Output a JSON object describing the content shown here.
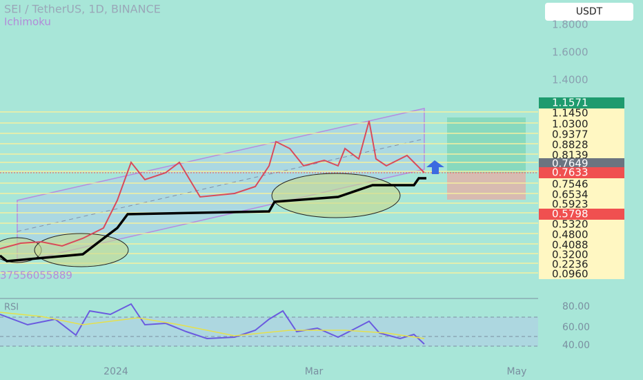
{
  "header": {
    "title": "SEI / TetherUS, 1D, BINANCE",
    "indicator": "Ichimoku",
    "currency": "USDT"
  },
  "price_scale": [
    "1.8000",
    "1.6000",
    "1.4000",
    "1.1571",
    "1.1450",
    "1.0300",
    "0.9377",
    "0.8828",
    "0.8139",
    "0.7649",
    "0.7633",
    "0.7546",
    "0.6534",
    "0.5923",
    "0.5798",
    "0.5320",
    "0.4800",
    "0.4088",
    "0.3200",
    "0.2236",
    "0.0960"
  ],
  "volume_text": "37556055889",
  "rsi": {
    "name": "RSI",
    "labels": [
      "80.00",
      "60.00",
      "40.00"
    ]
  },
  "time_axis": [
    "2024",
    "Mar",
    "May"
  ]
}
